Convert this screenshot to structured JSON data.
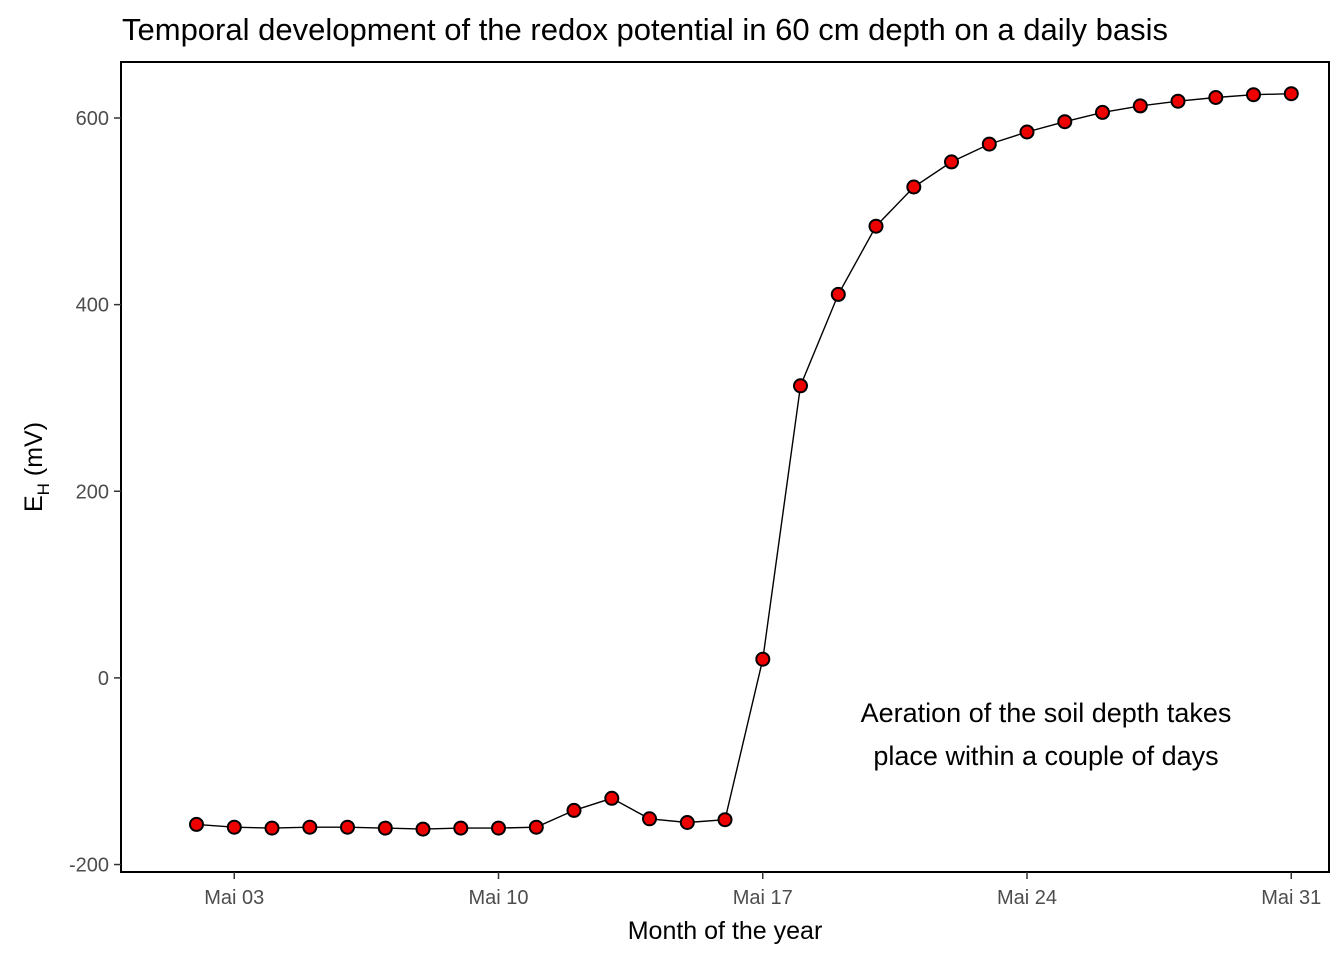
{
  "chart_data": {
    "type": "line",
    "title": "Temporal development of the redox potential in 60 cm depth on a daily basis",
    "xlabel": "Month of the year",
    "ylabel": {
      "main": "E",
      "subscript": "H",
      "unit": " (mV)"
    },
    "x_tick_labels": [
      {
        "date": "2023-05-03",
        "label": "Mai 03"
      },
      {
        "date": "2023-05-10",
        "label": "Mai 10"
      },
      {
        "date": "2023-05-17",
        "label": "Mai 17"
      },
      {
        "date": "2023-05-24",
        "label": "Mai 24"
      },
      {
        "date": "2023-05-31",
        "label": "Mai 31"
      }
    ],
    "y_ticks": [
      -200,
      0,
      200,
      400,
      600
    ],
    "y_tick_labels": [
      "-200",
      "0",
      "200",
      "400",
      "600"
    ],
    "xlim": [
      "2023-05-01",
      "2023-05-31"
    ],
    "ylim": [
      -200,
      660
    ],
    "grid": false,
    "annotation": [
      "Aeration of the soil depth takes",
      "place within a couple of days"
    ],
    "series": [
      {
        "line_color": "#000000",
        "marker_fill": "#ee0000",
        "marker_edge": "#000000",
        "points": [
          {
            "x": "2023-05-02",
            "y": -157
          },
          {
            "x": "2023-05-03",
            "y": -160
          },
          {
            "x": "2023-05-04",
            "y": -161
          },
          {
            "x": "2023-05-05",
            "y": -160
          },
          {
            "x": "2023-05-06",
            "y": -160
          },
          {
            "x": "2023-05-07",
            "y": -161
          },
          {
            "x": "2023-05-08",
            "y": -162
          },
          {
            "x": "2023-05-09",
            "y": -161
          },
          {
            "x": "2023-05-10",
            "y": -161
          },
          {
            "x": "2023-05-11",
            "y": -160
          },
          {
            "x": "2023-05-12",
            "y": -142
          },
          {
            "x": "2023-05-13",
            "y": -129
          },
          {
            "x": "2023-05-14",
            "y": -151
          },
          {
            "x": "2023-05-15",
            "y": -155
          },
          {
            "x": "2023-05-16",
            "y": -152
          },
          {
            "x": "2023-05-17",
            "y": 20
          },
          {
            "x": "2023-05-18",
            "y": 313
          },
          {
            "x": "2023-05-19",
            "y": 411
          },
          {
            "x": "2023-05-20",
            "y": 484
          },
          {
            "x": "2023-05-21",
            "y": 526
          },
          {
            "x": "2023-05-22",
            "y": 553
          },
          {
            "x": "2023-05-23",
            "y": 572
          },
          {
            "x": "2023-05-24",
            "y": 585
          },
          {
            "x": "2023-05-25",
            "y": 596
          },
          {
            "x": "2023-05-26",
            "y": 606
          },
          {
            "x": "2023-05-27",
            "y": 613
          },
          {
            "x": "2023-05-28",
            "y": 618
          },
          {
            "x": "2023-05-29",
            "y": 622
          },
          {
            "x": "2023-05-30",
            "y": 625
          },
          {
            "x": "2023-05-31",
            "y": 626
          }
        ]
      }
    ]
  }
}
